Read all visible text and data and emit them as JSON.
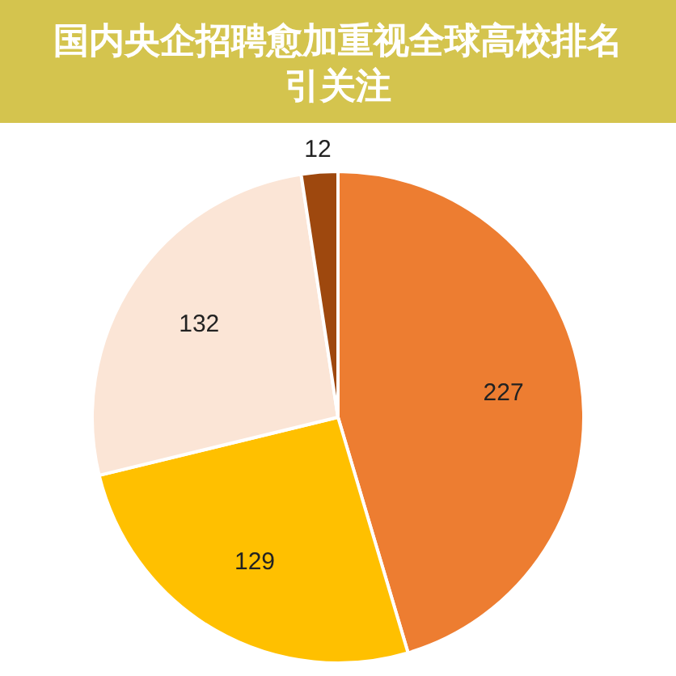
{
  "chart_data": {
    "type": "pie",
    "title": "国内央企招聘愈加重视全球高校排名引关注",
    "categories": [
      null,
      null,
      null,
      null
    ],
    "values": [
      227,
      129,
      132,
      12
    ],
    "colors": [
      "#ed7d31",
      "#ffc000",
      "#fbe5d6",
      "#9e480e"
    ],
    "data_labels": true
  }
}
